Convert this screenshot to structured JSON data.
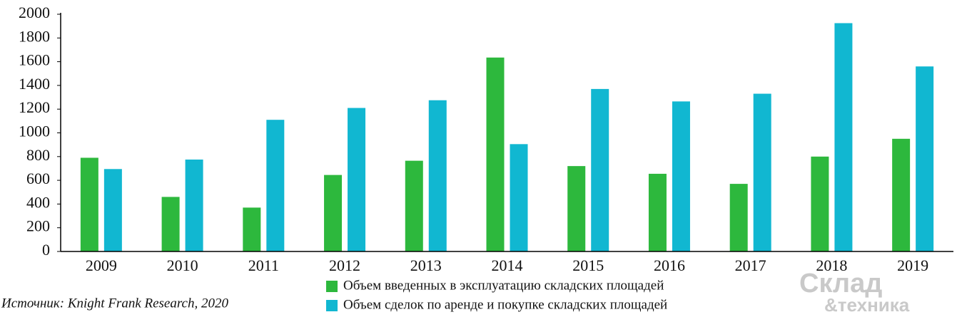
{
  "chart_data": {
    "type": "bar",
    "categories": [
      "2009",
      "2010",
      "2011",
      "2012",
      "2013",
      "2014",
      "2015",
      "2016",
      "2017",
      "2018",
      "2019"
    ],
    "series": [
      {
        "name": "Объем введенных в эксплуатацию складских площадей",
        "color": "#2db83d",
        "values": [
          790,
          460,
          370,
          645,
          765,
          1635,
          720,
          655,
          570,
          800,
          950
        ]
      },
      {
        "name": "Объем сделок по аренде и покупке складских площадей",
        "color": "#11b7d1",
        "values": [
          695,
          775,
          1110,
          1210,
          1275,
          905,
          1370,
          1265,
          1330,
          1925,
          1560
        ]
      }
    ],
    "ylim": [
      0,
      2000
    ],
    "yticks": [
      0,
      200,
      400,
      600,
      800,
      1000,
      1200,
      1400,
      1600,
      1800,
      2000
    ],
    "grid": false,
    "source": "Источник: Knight Frank Research, 2020",
    "watermark": [
      "Склад",
      "&техника"
    ]
  }
}
